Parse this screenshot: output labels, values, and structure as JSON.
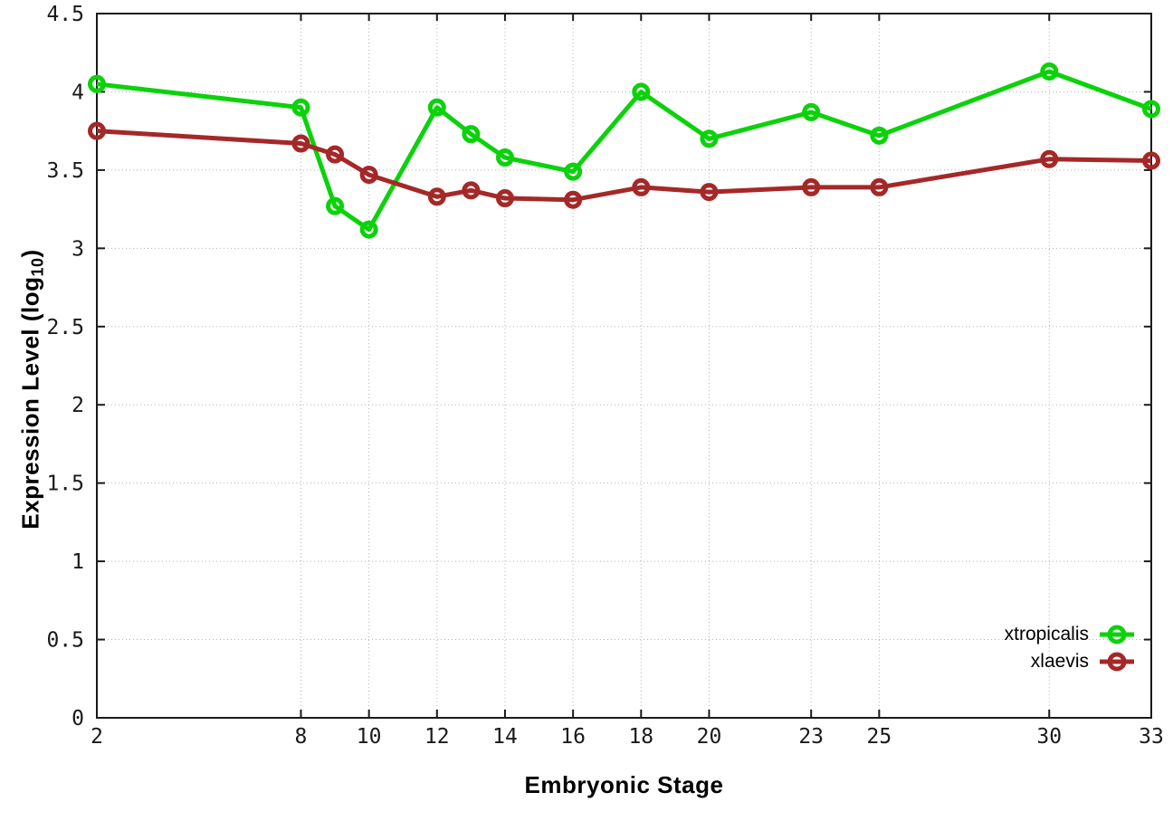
{
  "chart_data": {
    "type": "line",
    "title": "",
    "xlabel": "Embryonic Stage",
    "ylabel": "Expression Level (log10)",
    "ylabel_parts": {
      "main": "Expression Level (log",
      "sub": "10",
      "end": ")"
    },
    "x": [
      2,
      8,
      9,
      10,
      12,
      13,
      14,
      16,
      18,
      20,
      23,
      25,
      30,
      33
    ],
    "series": [
      {
        "name": "xtropicalis",
        "color": "#0bd20b",
        "values": [
          4.05,
          3.9,
          3.27,
          3.12,
          3.9,
          3.73,
          3.58,
          3.49,
          4.0,
          3.7,
          3.87,
          3.72,
          4.13,
          3.89
        ]
      },
      {
        "name": "xlaevis",
        "color": "#a52828",
        "values": [
          3.75,
          3.67,
          3.6,
          3.47,
          3.33,
          3.37,
          3.32,
          3.31,
          3.39,
          3.36,
          3.39,
          3.39,
          3.57,
          3.56
        ]
      }
    ],
    "xlim": [
      2,
      33
    ],
    "ylim": [
      0,
      4.5
    ],
    "xticks": [
      2,
      8,
      10,
      12,
      14,
      16,
      18,
      20,
      23,
      25,
      30,
      33
    ],
    "yticks": [
      0,
      0.5,
      1,
      1.5,
      2,
      2.5,
      3,
      3.5,
      4,
      4.5
    ],
    "grid": true,
    "legend_position": "bottom-right",
    "marker": "open-circle"
  },
  "styles": {
    "background": "#ffffff",
    "axis_color": "#1a1a1a",
    "grid_color": "#b5b5b5",
    "tick_text_color": "#1a1a1a"
  }
}
